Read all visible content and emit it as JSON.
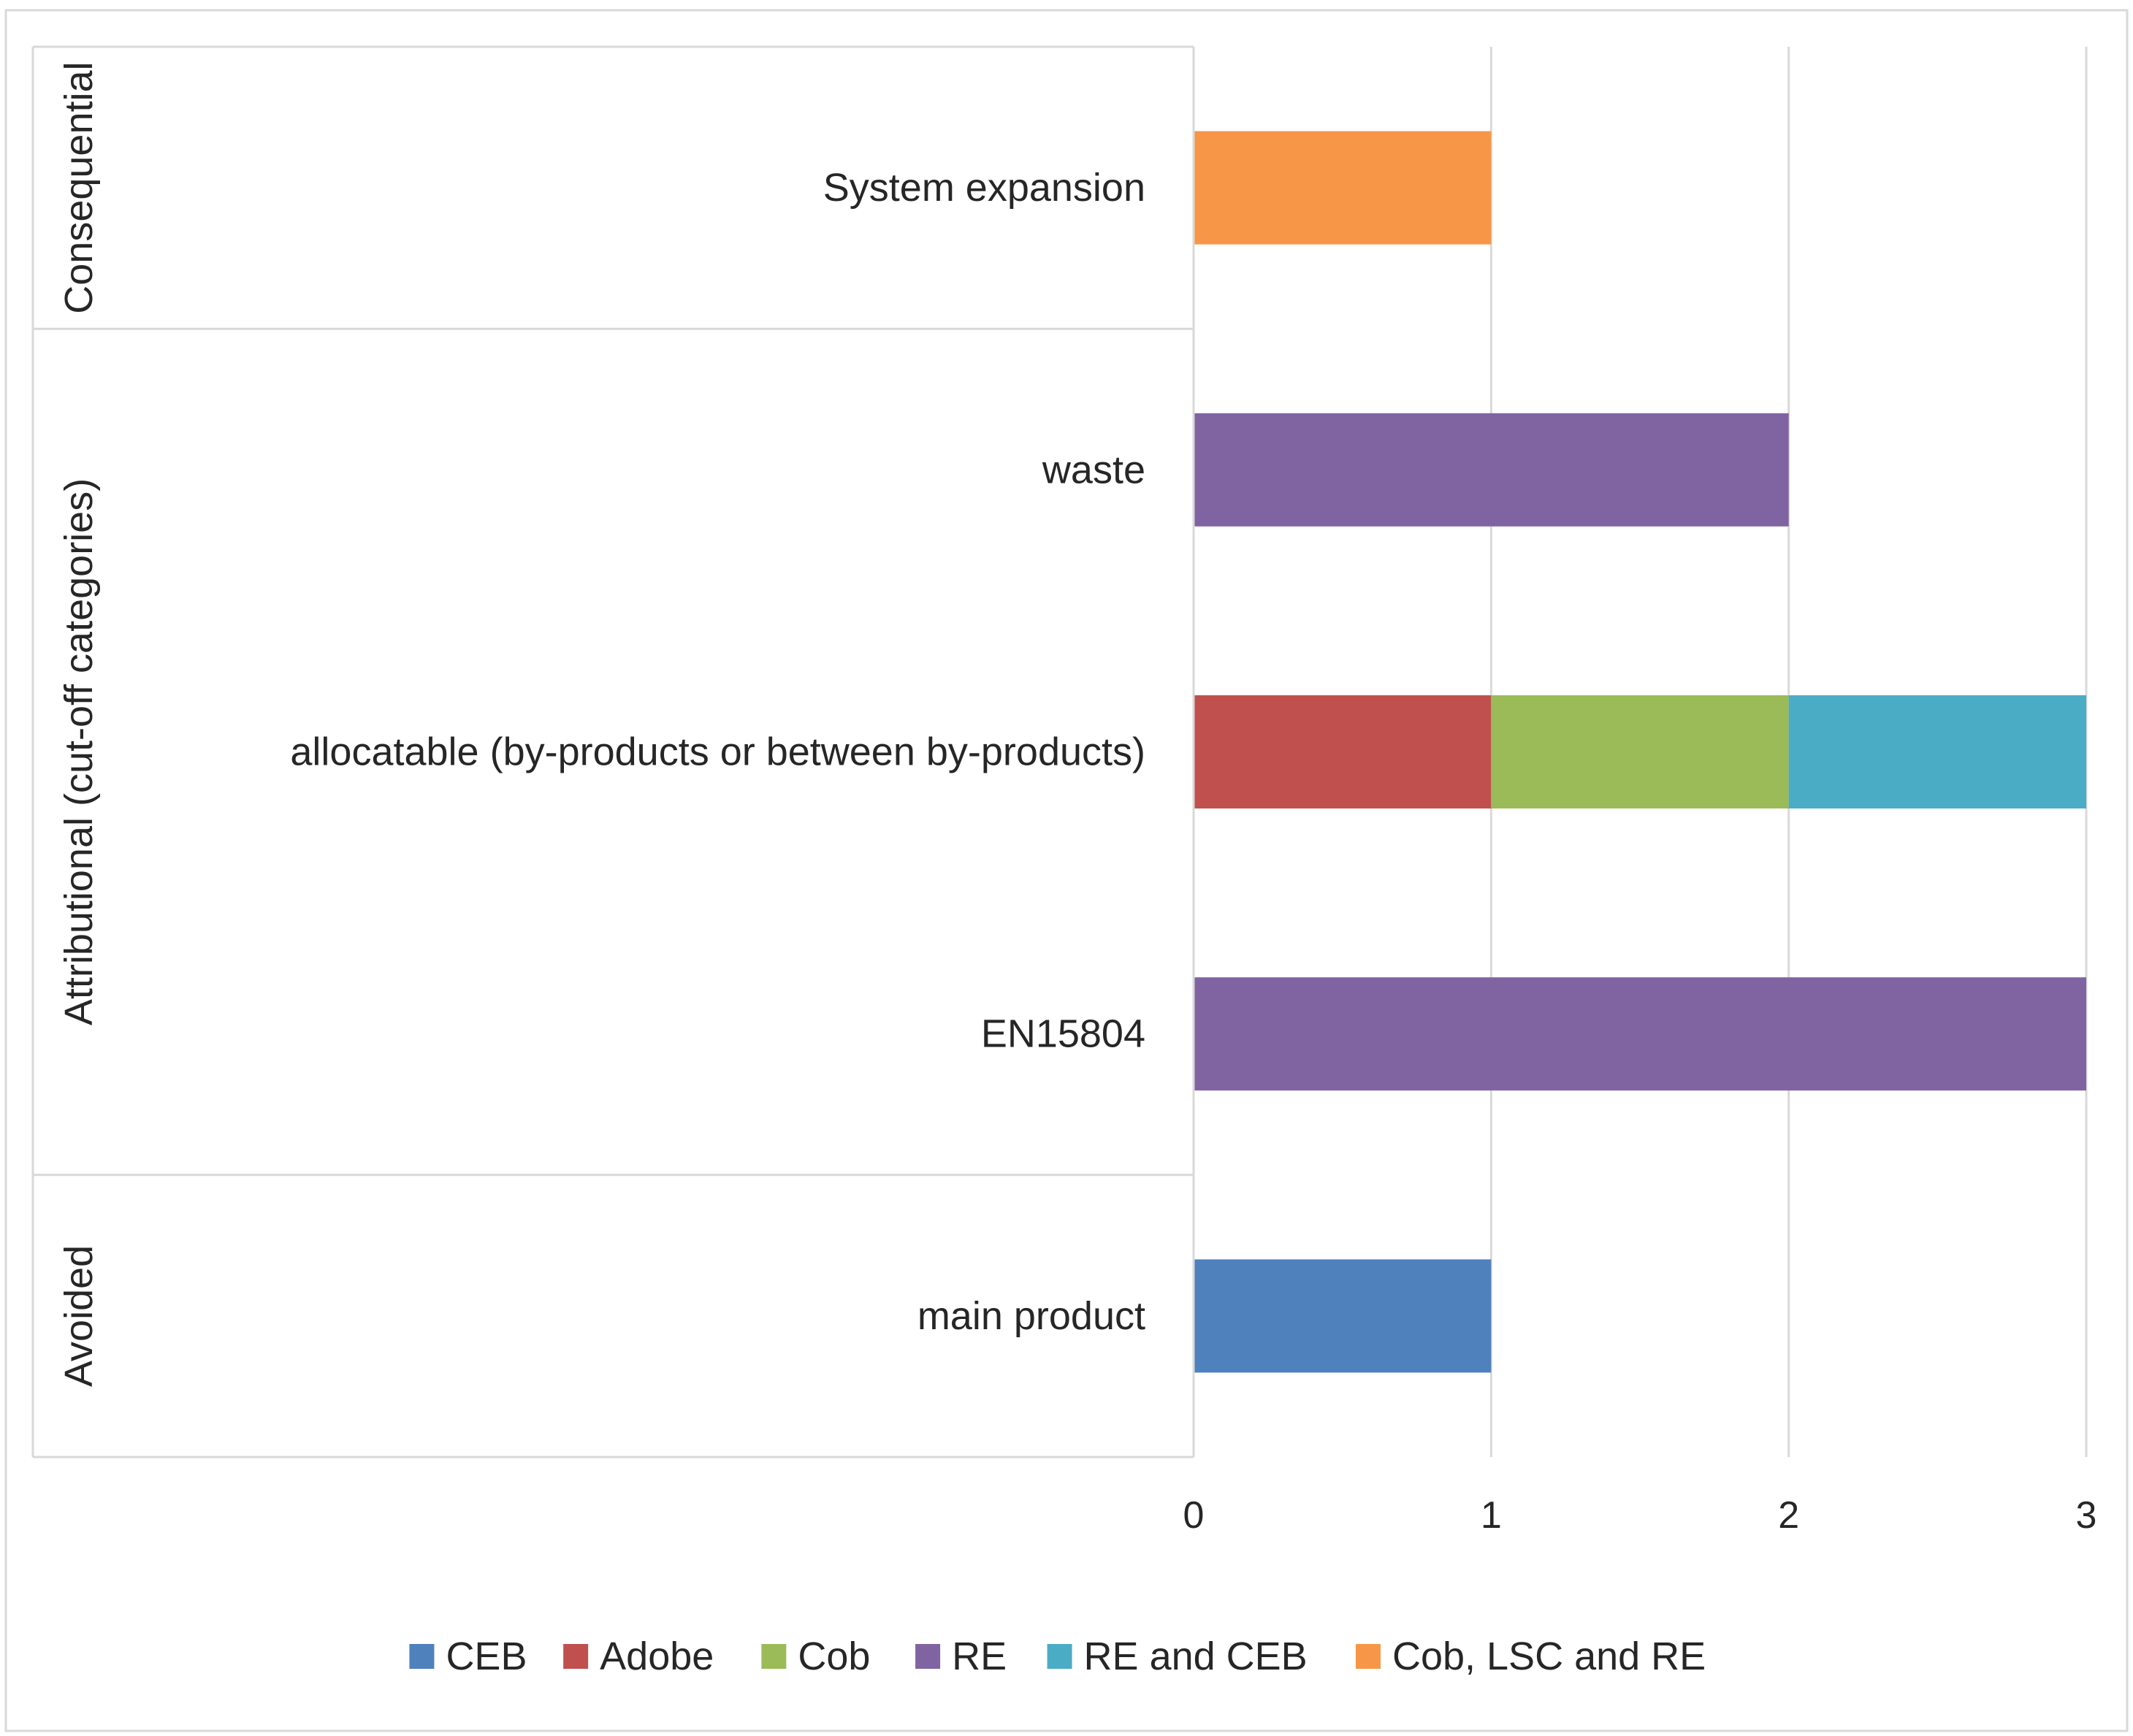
{
  "chart_data": {
    "type": "bar",
    "orientation": "horizontal",
    "stacked": true,
    "title": "",
    "xlabel": "",
    "ylabel": "",
    "xlim": [
      0,
      3
    ],
    "x_ticks": [
      0,
      1,
      2,
      3
    ],
    "grid": true,
    "legend_position": "bottom",
    "groups": [
      {
        "label": "Consequential",
        "categories": [
          "System expansion"
        ]
      },
      {
        "label": "Attributional (cut-off categories)",
        "categories": [
          "waste",
          "allocatable (by-products or between by-products)",
          "EN15804"
        ]
      },
      {
        "label": "Avoided",
        "categories": [
          "main product"
        ]
      }
    ],
    "categories": [
      "System expansion",
      "waste",
      "allocatable (by-products or between by-products)",
      "EN15804",
      "main product"
    ],
    "series": [
      {
        "name": "CEB",
        "color": "#4F81BD",
        "values": [
          0,
          0,
          0,
          0,
          1
        ]
      },
      {
        "name": "Adobe",
        "color": "#C0504D",
        "values": [
          0,
          0,
          1,
          0,
          0
        ]
      },
      {
        "name": "Cob",
        "color": "#9BBB59",
        "values": [
          0,
          0,
          1,
          0,
          0
        ]
      },
      {
        "name": "RE",
        "color": "#8064A2",
        "values": [
          0,
          2,
          0,
          3,
          0
        ]
      },
      {
        "name": "RE and CEB",
        "color": "#4BACC6",
        "values": [
          0,
          0,
          1,
          0,
          0
        ]
      },
      {
        "name": "Cob, LSC and RE",
        "color": "#F79646",
        "values": [
          1,
          0,
          0,
          0,
          0
        ]
      }
    ]
  }
}
